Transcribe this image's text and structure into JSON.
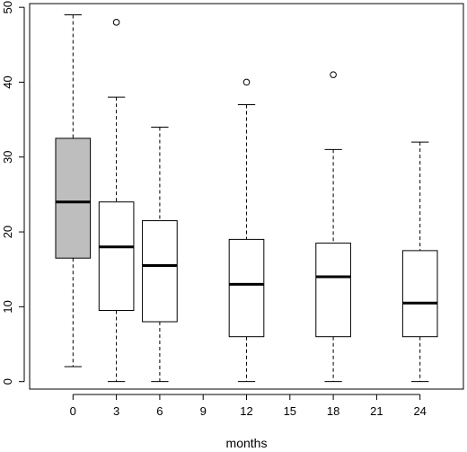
{
  "chart_data": {
    "type": "boxplot",
    "xlabel": "months",
    "ylabel": "",
    "xlim": [
      -3,
      27
    ],
    "ylim": [
      -1,
      50.5
    ],
    "x_ticks": [
      0,
      3,
      6,
      9,
      12,
      15,
      18,
      21,
      24
    ],
    "y_ticks": [
      0,
      10,
      20,
      30,
      40,
      50
    ],
    "x_tick_labels": [
      "0",
      "3",
      "6",
      "9",
      "12",
      "15",
      "18",
      "21",
      "24"
    ],
    "y_tick_labels": [
      "0",
      "10",
      "20",
      "30",
      "40",
      "50"
    ],
    "grid": false,
    "box_half_width": 1.2,
    "colors": {
      "highlight_fill": "#bebebe",
      "box_fill": "#ffffff",
      "stroke": "#000000"
    },
    "boxes": [
      {
        "x": 0,
        "whisker_low": 2,
        "q1": 16.5,
        "median": 24,
        "q3": 32.5,
        "whisker_high": 49,
        "outliers": [],
        "highlight": true
      },
      {
        "x": 3,
        "whisker_low": 0,
        "q1": 9.5,
        "median": 18,
        "q3": 24,
        "whisker_high": 38,
        "outliers": [
          48
        ],
        "highlight": false
      },
      {
        "x": 6,
        "whisker_low": 0,
        "q1": 8,
        "median": 15.5,
        "q3": 21.5,
        "whisker_high": 34,
        "outliers": [],
        "highlight": false
      },
      {
        "x": 12,
        "whisker_low": 0,
        "q1": 6,
        "median": 13,
        "q3": 19,
        "whisker_high": 37,
        "outliers": [
          40
        ],
        "highlight": false
      },
      {
        "x": 18,
        "whisker_low": 0,
        "q1": 6,
        "median": 14,
        "q3": 18.5,
        "whisker_high": 31,
        "outliers": [
          41
        ],
        "highlight": false
      },
      {
        "x": 24,
        "whisker_low": 0,
        "q1": 6,
        "median": 10.5,
        "q3": 17.5,
        "whisker_high": 32,
        "outliers": [],
        "highlight": false
      }
    ]
  }
}
